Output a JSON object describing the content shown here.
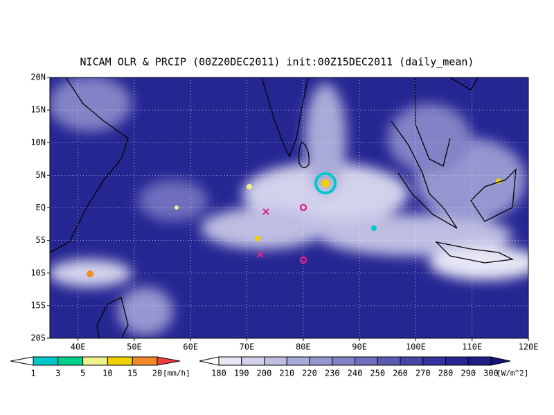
{
  "title": "NICAM OLR & PRCIP (00Z20DEC2011) init:00Z15DEC2011 (daily_mean)",
  "lat_labels": [
    "20N",
    "15N",
    "10N",
    "5N",
    "EQ",
    "5S",
    "10S",
    "15S",
    "20S"
  ],
  "lon_labels": [
    "40E",
    "50E",
    "60E",
    "70E",
    "80E",
    "90E",
    "100E",
    "110E",
    "120E"
  ],
  "precip_colorbar": {
    "labels": [
      "1",
      "3",
      "5",
      "10",
      "15",
      "20"
    ],
    "unit": "[mm/h]",
    "colors": [
      "#ffffff",
      "#00c8c8",
      "#00d28c",
      "#f0f08c",
      "#f0d200",
      "#f08c28",
      "#f03c3c"
    ]
  },
  "olr_colorbar": {
    "labels": [
      "180",
      "190",
      "200",
      "210",
      "220",
      "230",
      "240",
      "250",
      "260",
      "270",
      "280",
      "290",
      "300"
    ],
    "unit": "[W/m^2]",
    "colors": [
      "#ffffff",
      "#e6e6f5",
      "#d2d2ec",
      "#bebee3",
      "#aaaad9",
      "#9696d0",
      "#8282c6",
      "#6e6ebd",
      "#5a5ab4",
      "#4646aa",
      "#3232a0",
      "#262693",
      "#1e1e85",
      "#14147a"
    ]
  }
}
